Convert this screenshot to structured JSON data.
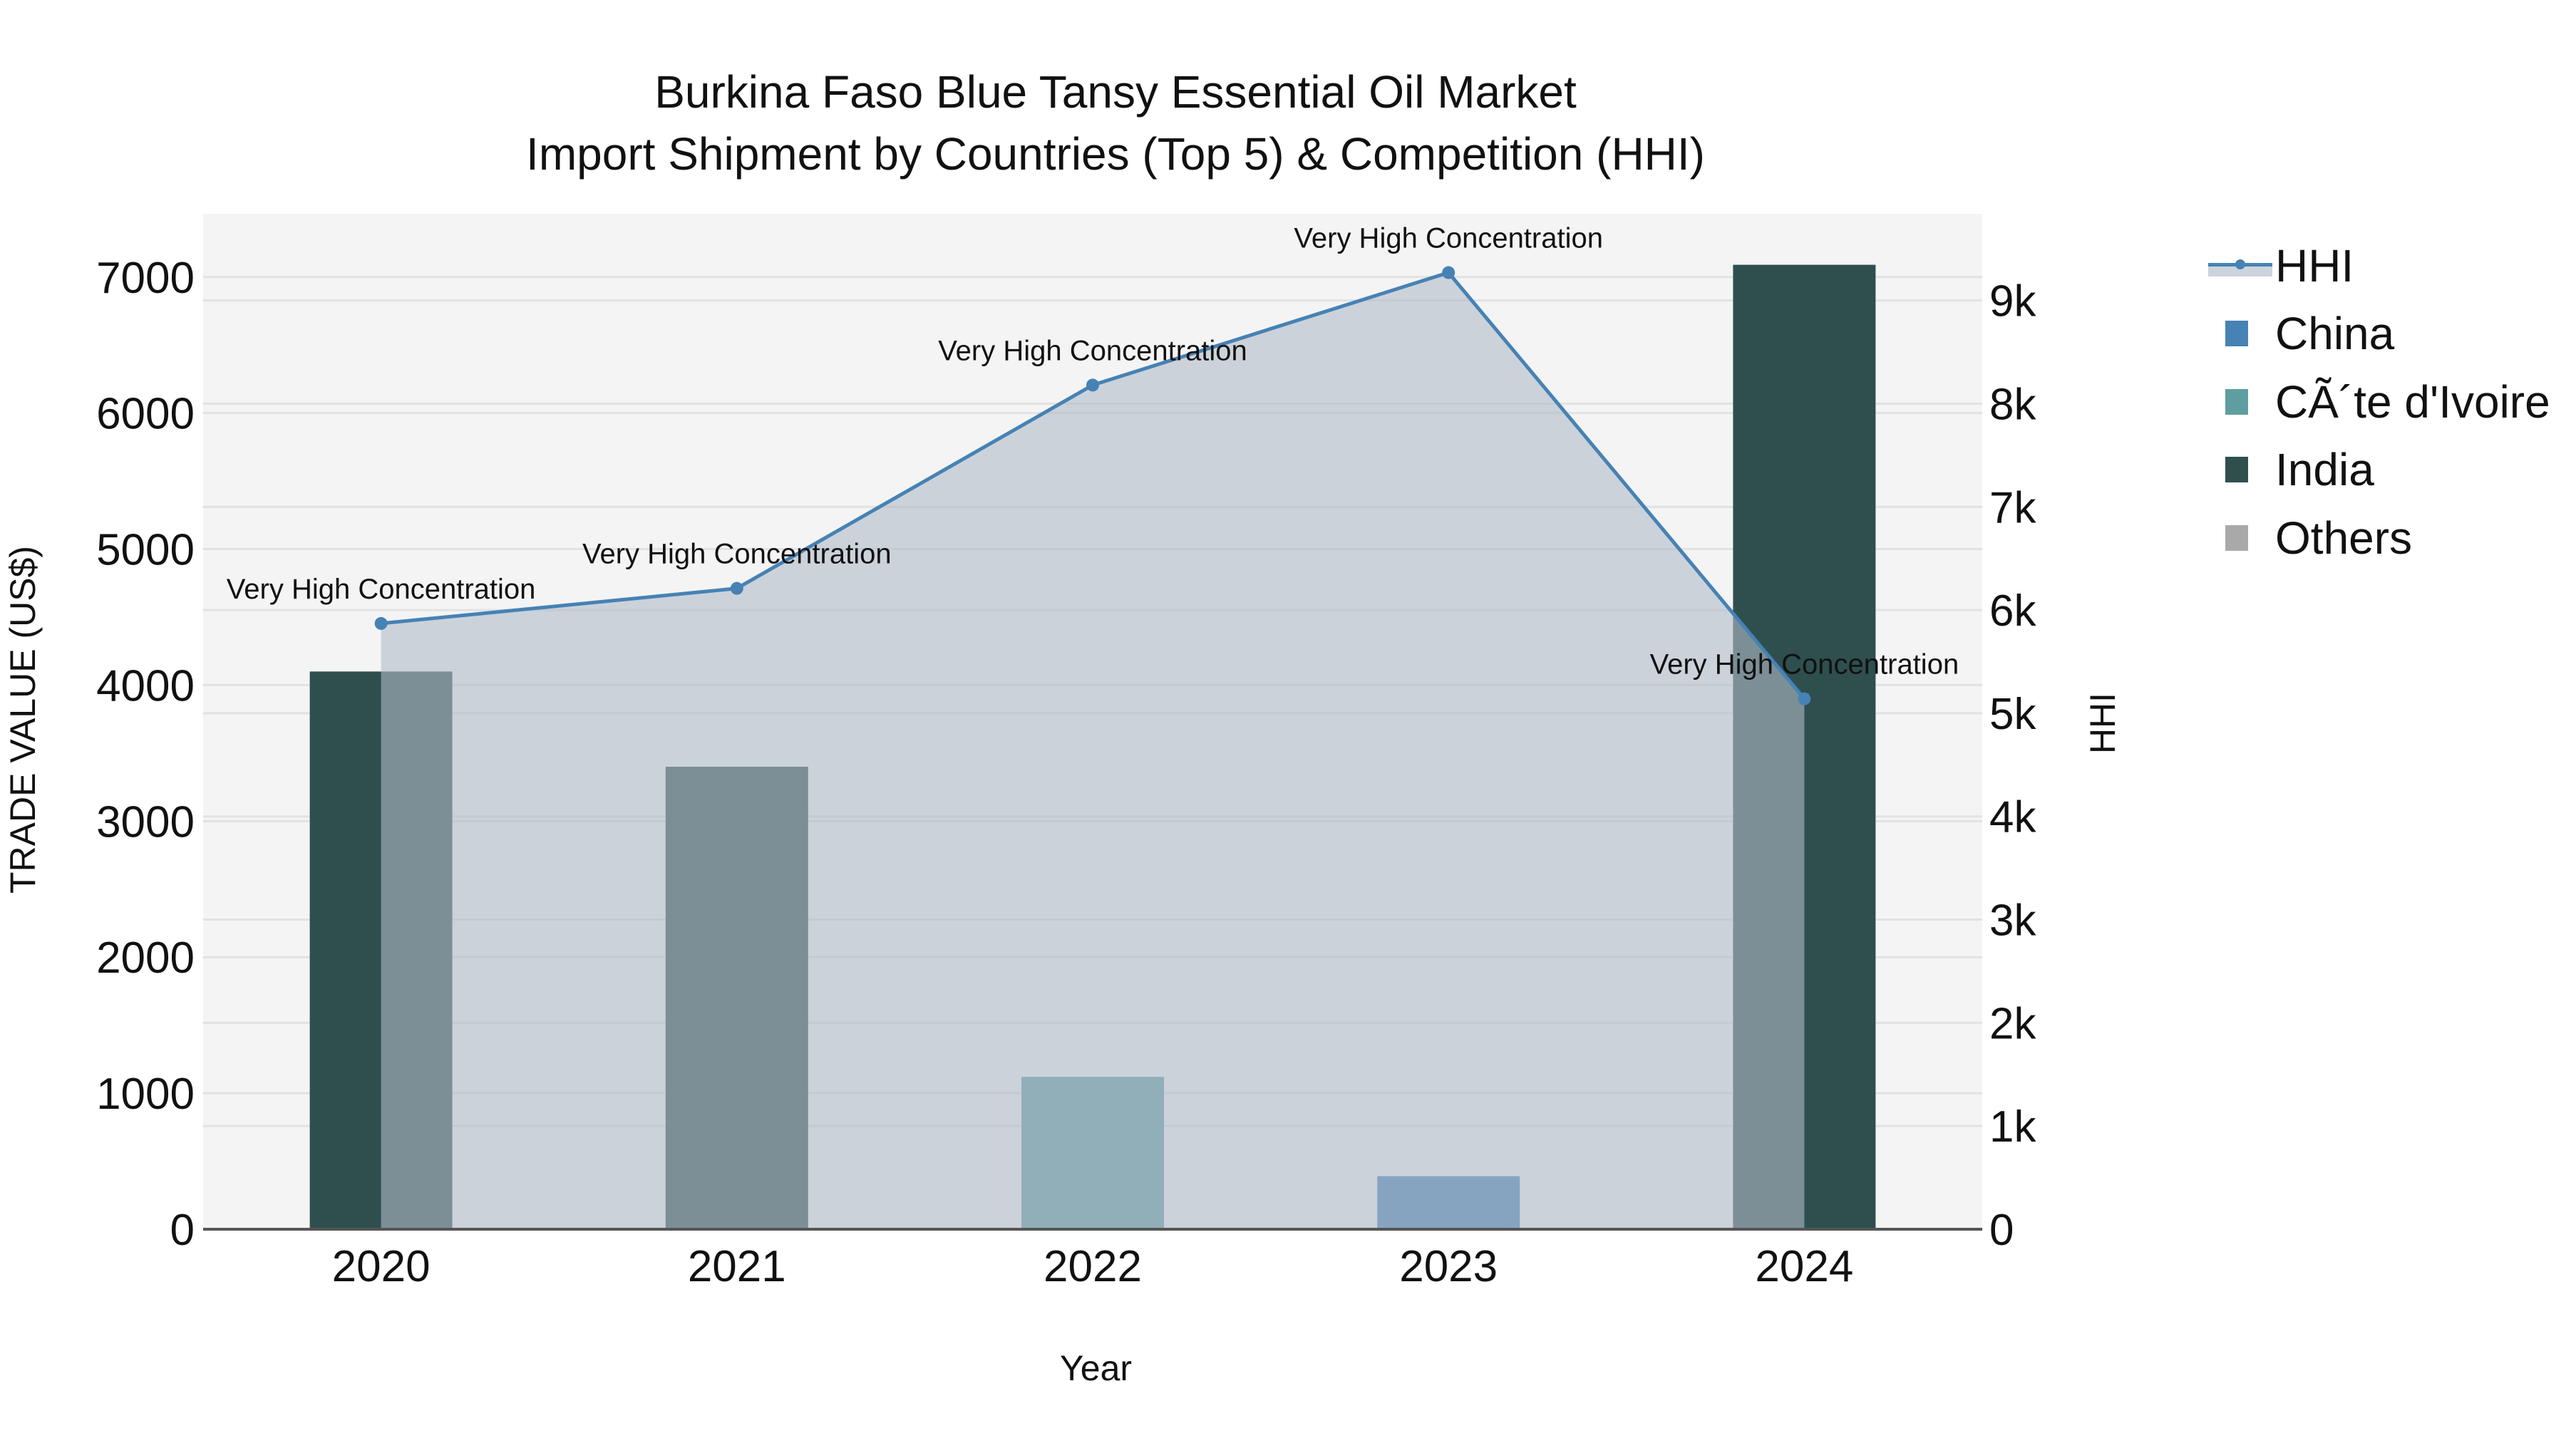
{
  "title": {
    "line1": "Burkina Faso Blue Tansy Essential Oil Market",
    "line2": "Import Shipment by Countries (Top 5) & Competition (HHI)"
  },
  "axes": {
    "x_title": "Year",
    "y_left_title": "TRADE VALUE (US$)",
    "y_right_title": "HHI"
  },
  "legend": {
    "items": [
      {
        "label": "HHI",
        "type": "line",
        "color": "#4682b4"
      },
      {
        "label": "China",
        "type": "bar",
        "color": "#4682b4"
      },
      {
        "label": "CÃ´te d'Ivoire",
        "type": "bar",
        "color": "#5f9ea0"
      },
      {
        "label": "India",
        "type": "bar",
        "color": "#2f4f4f"
      },
      {
        "label": "Others",
        "type": "bar",
        "color": "#a9a9a9"
      }
    ]
  },
  "colors": {
    "plot_bg": "#f4f4f4",
    "grid": "#e2e2e2",
    "hhi_line": "#4682b4",
    "hhi_fill": "rgba(176,186,200,0.6)",
    "china": "#4682b4",
    "cote_divoire": "#5f9ea0",
    "india": "#2f4f4f",
    "others": "#a9a9a9"
  },
  "chart_data": {
    "type": "bar",
    "title": "Burkina Faso Blue Tansy Essential Oil Market — Import Shipment by Countries (Top 5) & Competition (HHI)",
    "xlabel": "Year",
    "ylabel": "TRADE VALUE (US$)",
    "y2label": "HHI",
    "categories": [
      "2020",
      "2021",
      "2022",
      "2023",
      "2024"
    ],
    "ylim": [
      0,
      7465
    ],
    "y2lim": [
      0,
      9840
    ],
    "y_ticks": [
      0,
      1000,
      2000,
      3000,
      4000,
      5000,
      6000,
      7000
    ],
    "y2_ticks": [
      "0",
      "1k",
      "2k",
      "3k",
      "4k",
      "5k",
      "6k",
      "7k",
      "8k",
      "9k"
    ],
    "grid": true,
    "legend_position": "right",
    "series": [
      {
        "name": "China",
        "type": "bar",
        "values": [
          0,
          0,
          0,
          390,
          0
        ]
      },
      {
        "name": "CÃ´te d'Ivoire",
        "type": "bar",
        "values": [
          0,
          0,
          1120,
          0,
          0
        ]
      },
      {
        "name": "India",
        "type": "bar",
        "values": [
          4100,
          3400,
          0,
          0,
          7090
        ]
      },
      {
        "name": "Others",
        "type": "bar",
        "values": [
          0,
          0,
          0,
          0,
          0
        ]
      },
      {
        "name": "HHI",
        "type": "area-line",
        "axis": "right",
        "values": [
          5870,
          6210,
          8180,
          9270,
          5140
        ]
      }
    ],
    "annotations": [
      {
        "x": "2020",
        "text": "Very High Concentration"
      },
      {
        "x": "2021",
        "text": "Very High Concentration"
      },
      {
        "x": "2022",
        "text": "Very High Concentration"
      },
      {
        "x": "2023",
        "text": "Very High Concentration"
      },
      {
        "x": "2024",
        "text": "Very High Concentration"
      }
    ]
  }
}
